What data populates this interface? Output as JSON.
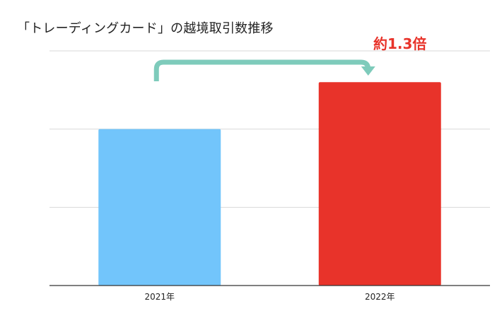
{
  "chart_data": {
    "type": "bar",
    "title": "「トレーディングカード」の越境取引数推移",
    "xlabel": "",
    "ylabel": "",
    "categories": [
      "2021年",
      "2022年"
    ],
    "values": [
      1.0,
      1.3
    ],
    "ylim": [
      0,
      1.5
    ],
    "grid": true,
    "y_tick_labels_shown": false,
    "bar_colors": [
      "#72c5fb",
      "#e8332a"
    ],
    "annotation": {
      "text": "約1.3倍",
      "color": "#e8332a",
      "arrow_color": "#7ecbbb",
      "from": "2021年",
      "to": "2022年"
    }
  }
}
